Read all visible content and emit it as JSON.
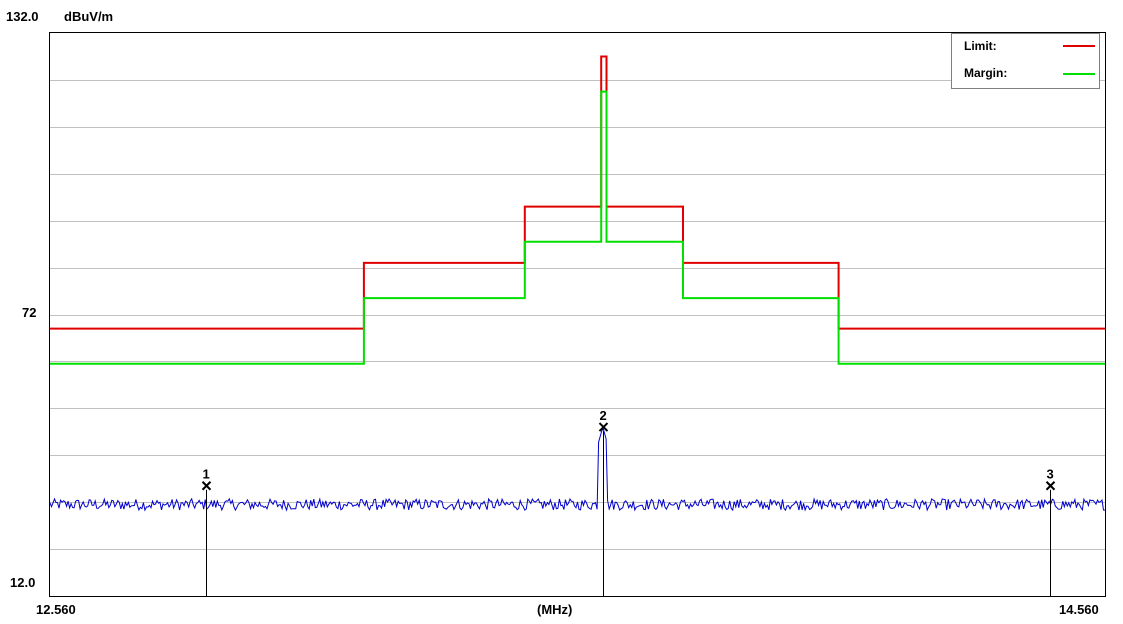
{
  "chart_data": {
    "type": "line",
    "ytop_label": "132.0",
    "ymid_label": "72",
    "ybottom_label": "12.0",
    "yunit": "dBuV/m",
    "xmin_label": "12.560",
    "xmax_label": "14.560",
    "xunit": "(MHz)",
    "ylim": [
      12.0,
      132.0
    ],
    "xlim": [
      12.56,
      14.56
    ],
    "grid": true,
    "legend_position": "top-right",
    "legend": [
      {
        "label": "Limit:",
        "color": "#e00000"
      },
      {
        "label": "Margin:",
        "color": "#00e000"
      }
    ],
    "series": [
      {
        "name": "Limit:",
        "color": "#e00000",
        "points": [
          [
            12.56,
            69.0
          ],
          [
            13.155,
            69.0
          ],
          [
            13.155,
            83.0
          ],
          [
            13.46,
            83.0
          ],
          [
            13.46,
            95.0
          ],
          [
            13.605,
            95.0
          ],
          [
            13.605,
            127.0
          ],
          [
            13.615,
            127.0
          ],
          [
            13.615,
            95.0
          ],
          [
            13.76,
            95.0
          ],
          [
            13.76,
            83.0
          ],
          [
            14.055,
            83.0
          ],
          [
            14.055,
            69.0
          ],
          [
            14.56,
            69.0
          ]
        ]
      },
      {
        "name": "Margin:",
        "color": "#00e000",
        "points": [
          [
            12.56,
            61.5
          ],
          [
            13.155,
            61.5
          ],
          [
            13.155,
            75.5
          ],
          [
            13.46,
            75.5
          ],
          [
            13.46,
            87.5
          ],
          [
            13.605,
            87.5
          ],
          [
            13.605,
            119.5
          ],
          [
            13.615,
            119.5
          ],
          [
            13.615,
            87.5
          ],
          [
            13.76,
            87.5
          ],
          [
            13.76,
            75.5
          ],
          [
            14.055,
            75.5
          ],
          [
            14.055,
            61.5
          ],
          [
            14.56,
            61.5
          ]
        ]
      },
      {
        "color": "#0000cc",
        "baseline": 31.5,
        "peak": {
          "x": 13.608,
          "y": 48.0
        }
      }
    ],
    "markers": [
      {
        "label": "1",
        "x": 12.855,
        "y": 35.5
      },
      {
        "label": "2",
        "x": 13.608,
        "y": 48.0
      },
      {
        "label": "3",
        "x": 14.455,
        "y": 35.5
      }
    ]
  }
}
